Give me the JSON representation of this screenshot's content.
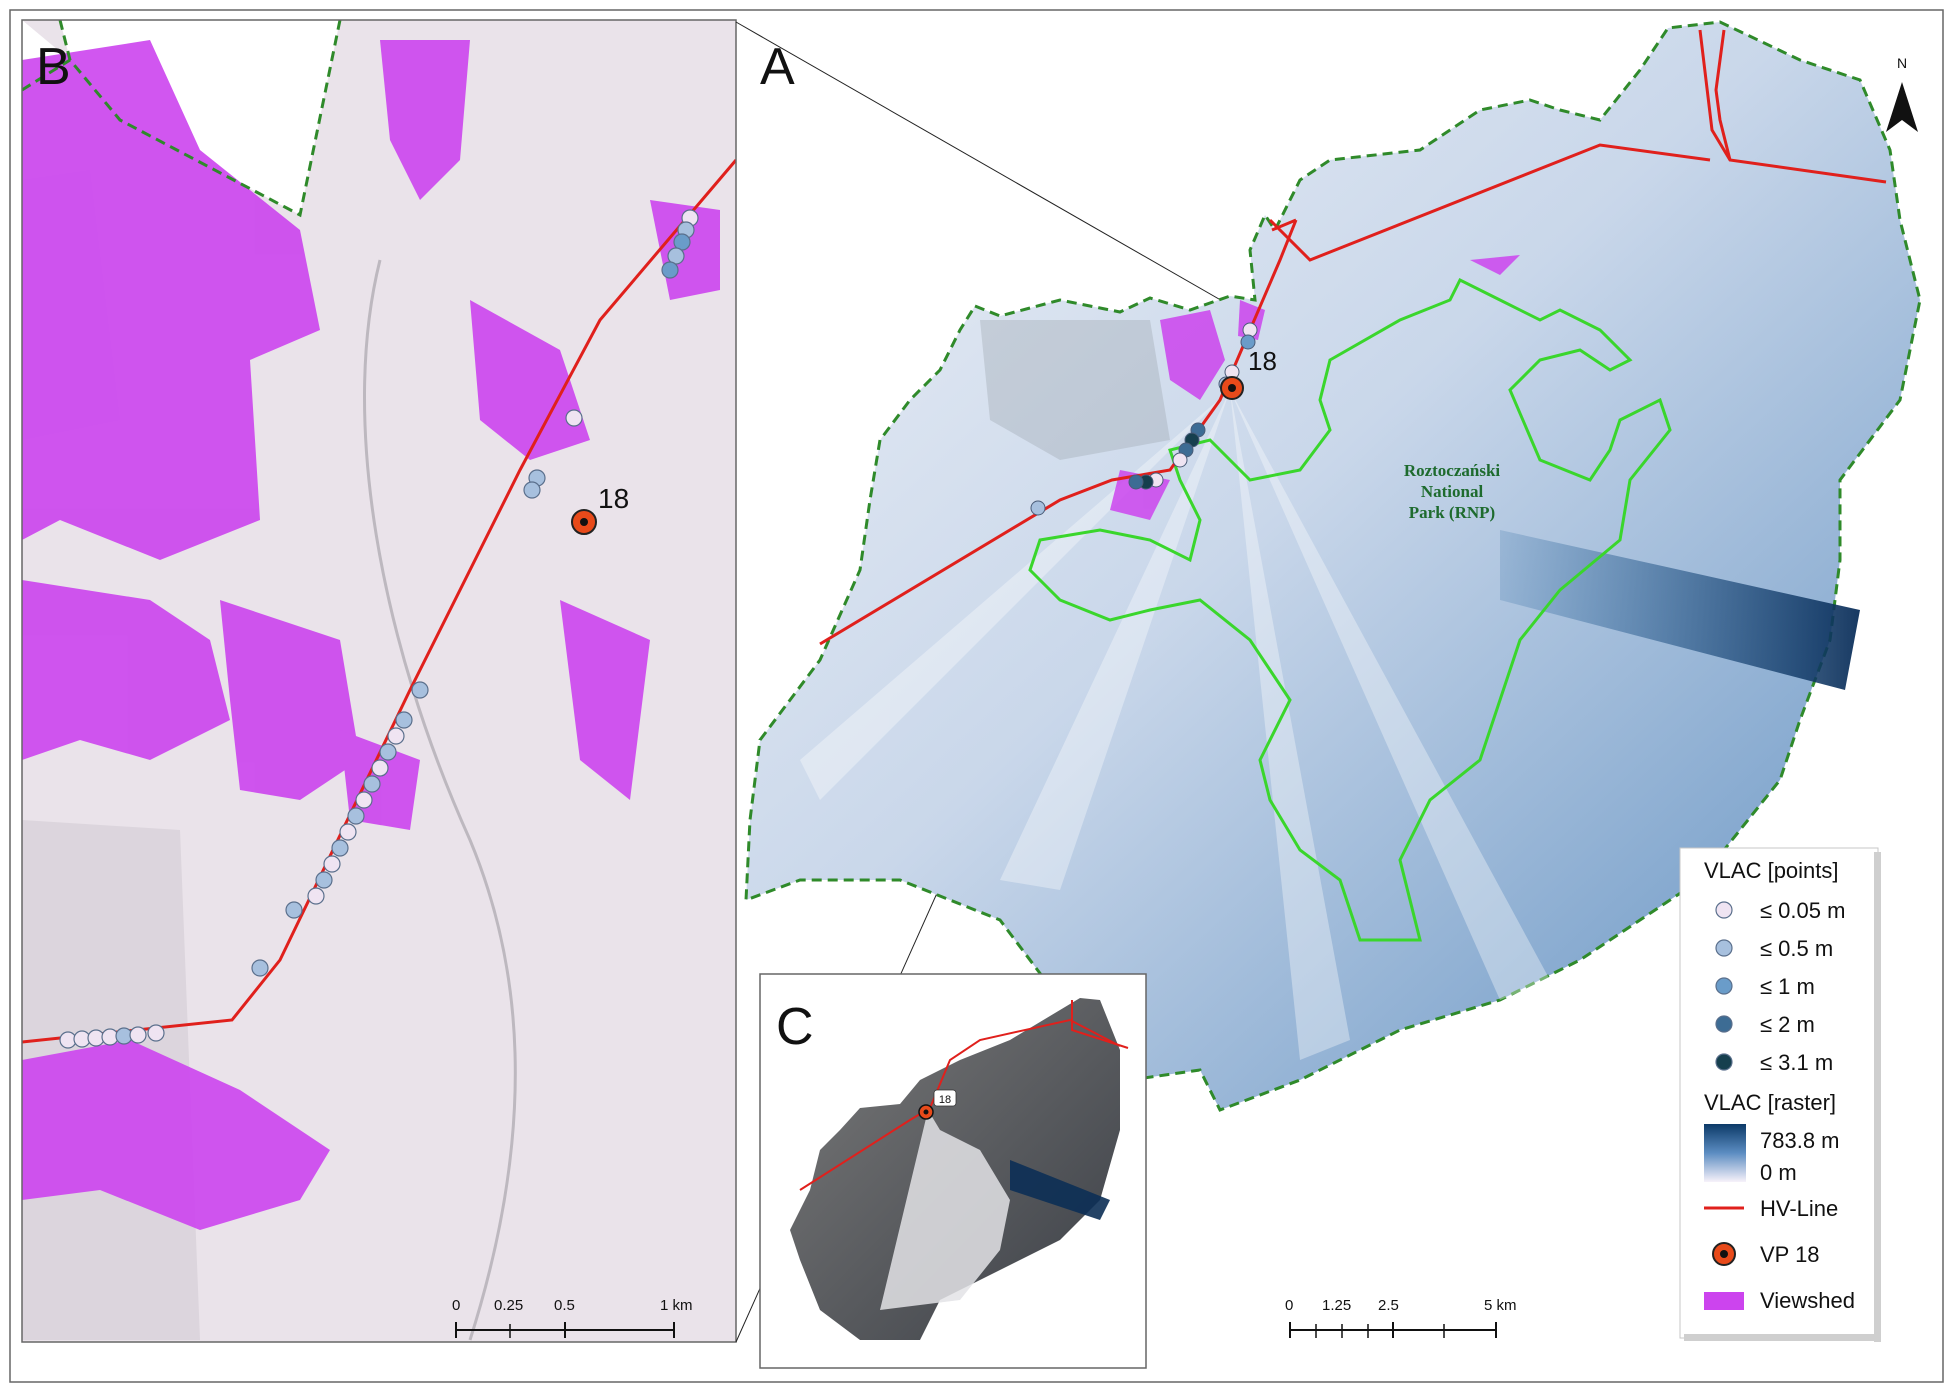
{
  "panels": {
    "a": "A",
    "b": "B",
    "c": "C"
  },
  "north_arrow": {
    "label": "N"
  },
  "viewpoint": {
    "label": "18",
    "inset_label": "18"
  },
  "park_label": {
    "line1": "Roztoczański",
    "line2": "National",
    "line3": "Park (RNP)"
  },
  "scale_a": {
    "ticks": [
      "0",
      "1.25",
      "2.5",
      "5 km"
    ]
  },
  "scale_b": {
    "ticks": [
      "0",
      "0.25",
      "0.5",
      "1 km"
    ]
  },
  "legend": {
    "points_title": "VLAC [points]",
    "points": [
      {
        "label": "≤ 0.05 m",
        "color": "#efe4f2"
      },
      {
        "label": "≤ 0.5 m",
        "color": "#a7c0de"
      },
      {
        "label": "≤ 1 m",
        "color": "#6a9cc9"
      },
      {
        "label": "≤ 2 m",
        "color": "#3d6c94"
      },
      {
        "label": "≤ 3.1 m",
        "color": "#163f4e"
      }
    ],
    "raster_title": "VLAC [raster]",
    "raster_max": "783.8 m",
    "raster_min": "0 m",
    "hv_line": "HV-Line",
    "vp": "VP 18",
    "viewshed": "Viewshed"
  },
  "colors": {
    "hv_line": "#e0201c",
    "park_boundary": "#3ad62c",
    "study_boundary": "#2f8a2a",
    "viewshed": "#cc44ee",
    "raster_high": "#0c3a68",
    "raster_low": "#f4eef8",
    "vp_fill": "#e84a1a"
  }
}
